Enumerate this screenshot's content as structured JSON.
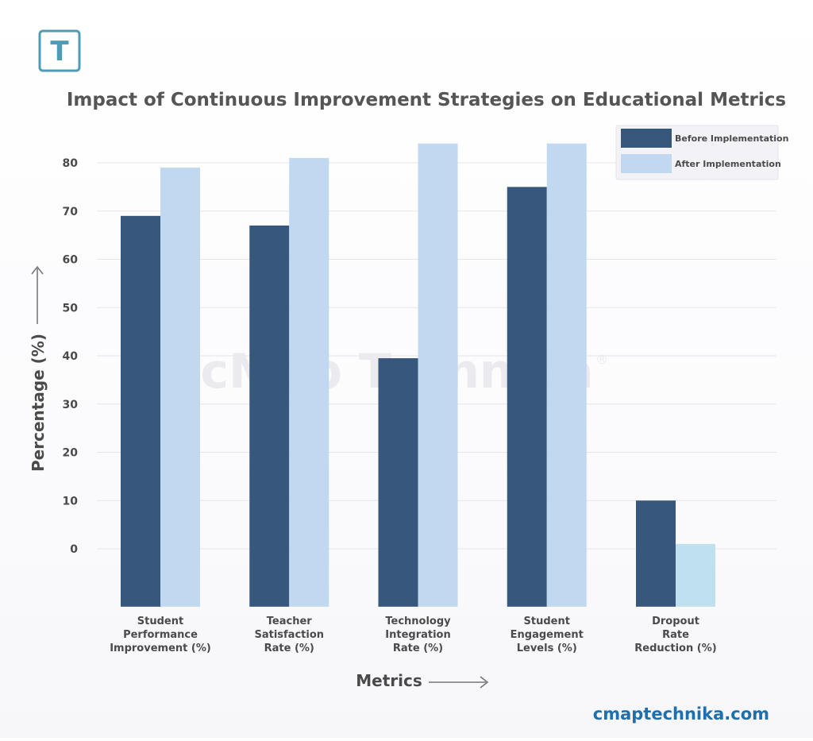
{
  "logo": {
    "glyph": "T"
  },
  "watermark": {
    "text": "cMap Technika",
    "mark": "®"
  },
  "website": "cmaptechnika.com",
  "colors": {
    "before": "#37587c",
    "after": "#c0d8f0",
    "after_dropout": "#bee0ef",
    "title": "#555555",
    "axis_text": "#4a4a4a",
    "grid": "#e6e6ea",
    "website": "#1d6fad",
    "logo": "#4f9cb6"
  },
  "chart_data": {
    "type": "bar",
    "title": "Impact of Continuous Improvement Strategies on Educational Metrics",
    "xlabel": "Metrics",
    "ylabel": "Percentage (%)",
    "ylim": [
      -12,
      82
    ],
    "yticks": [
      0,
      10,
      20,
      30,
      40,
      50,
      60,
      70,
      80
    ],
    "grid": true,
    "legend_position": "top-right",
    "categories": [
      [
        "Student",
        "Performance",
        "Improvement (%)"
      ],
      [
        "Teacher",
        "Satisfaction",
        "Rate (%)"
      ],
      [
        "Technology",
        "Integration",
        "Rate (%)"
      ],
      [
        "Student",
        "Engagement",
        "Levels (%)"
      ],
      [
        "Dropout",
        "Rate",
        "Reduction (%)"
      ]
    ],
    "series": [
      {
        "name": "Before Implementation",
        "values": [
          69,
          67,
          39.5,
          75,
          10
        ]
      },
      {
        "name": "After Implementation",
        "values": [
          79,
          81,
          84,
          84,
          1
        ]
      }
    ]
  }
}
